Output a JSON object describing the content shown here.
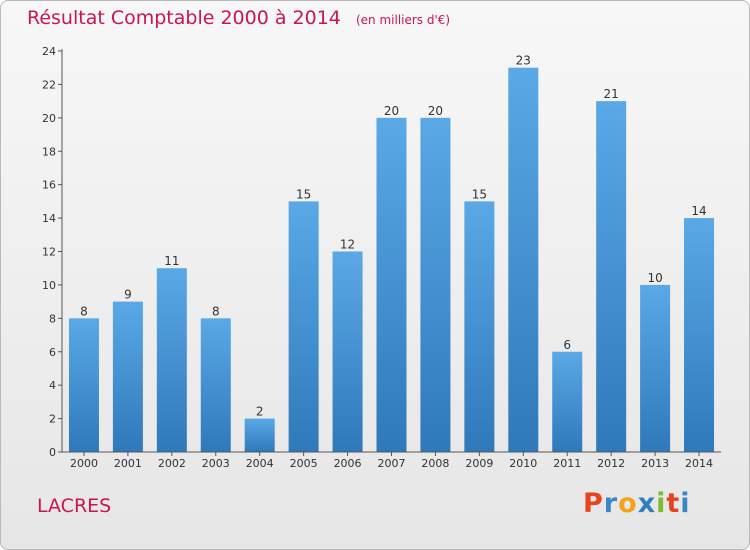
{
  "header": {
    "title": "Résultat Comptable 2000 à 2014",
    "subtitle": "(en milliers d'€)"
  },
  "footer": {
    "commune": "LACRES",
    "brand": "Proxiti"
  },
  "colors": {
    "accent": "#c8174e",
    "bar_top": "#5aa8e6",
    "bar_bottom": "#2f79bb",
    "logo": [
      "#e8431f",
      "#3b86c4",
      "#f4a21b",
      "#2f7fc1",
      "#7bbd2c",
      "#e8431f",
      "#3b86c4"
    ]
  },
  "chart_data": {
    "type": "bar",
    "title": "Résultat Comptable 2000 à 2014",
    "subtitle": "(en milliers d'€)",
    "xlabel": "",
    "ylabel": "",
    "categories": [
      "2000",
      "2001",
      "2002",
      "2003",
      "2004",
      "2005",
      "2006",
      "2007",
      "2008",
      "2009",
      "2010",
      "2011",
      "2012",
      "2013",
      "2014"
    ],
    "values": [
      8,
      9,
      11,
      8,
      2,
      15,
      12,
      20,
      20,
      15,
      23,
      6,
      21,
      10,
      14
    ],
    "ylim": [
      0,
      24
    ],
    "yticks": [
      0,
      2,
      4,
      6,
      8,
      10,
      12,
      14,
      16,
      18,
      20,
      22,
      24
    ],
    "grid": false,
    "legend": "none"
  }
}
